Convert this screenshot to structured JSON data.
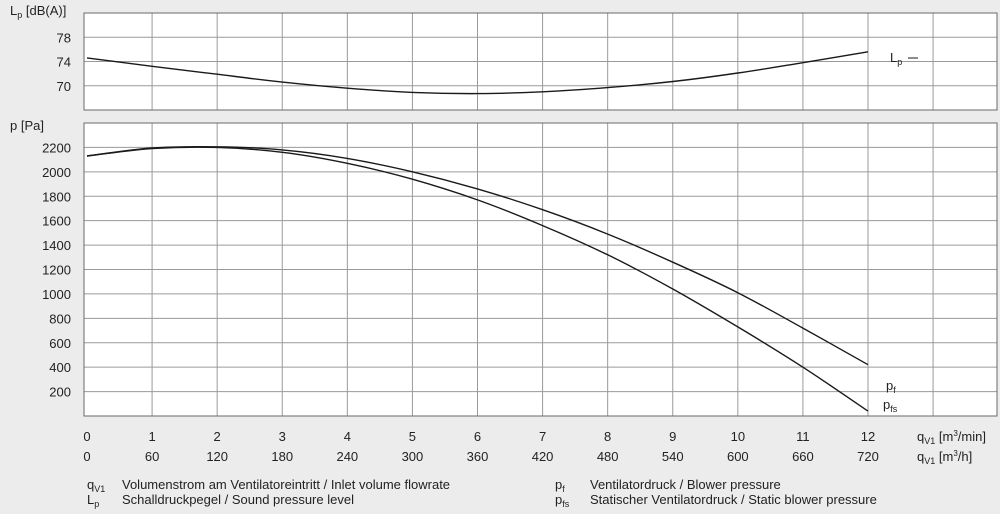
{
  "chart_data": {
    "type": "line",
    "x_primary": {
      "ticks": [
        0,
        1,
        2,
        3,
        4,
        5,
        6,
        7,
        8,
        9,
        10,
        11,
        12
      ],
      "label_symbol": "q",
      "label_sub": "V1",
      "label_unit_pre": "[m",
      "label_unit_sup": "3",
      "label_unit_post": "/min]"
    },
    "x_secondary": {
      "ticks": [
        0,
        60,
        120,
        180,
        240,
        300,
        360,
        420,
        480,
        540,
        600,
        660,
        720
      ],
      "label_symbol": "q",
      "label_sub": "V1",
      "label_unit_pre": "[m",
      "label_unit_sup": "3",
      "label_unit_post": "/h]"
    },
    "panels": [
      {
        "id": "sound",
        "ylabel_symbol": "L",
        "ylabel_sub": "p",
        "ylabel_unit": "[dB(A)]",
        "ylim": [
          66,
          82
        ],
        "yticks": [
          70,
          74,
          78
        ],
        "series": [
          {
            "name_symbol": "L",
            "name_sub": "p",
            "x": [
              0,
              1,
              2,
              3,
              4,
              5,
              6,
              7,
              8,
              9,
              10,
              11,
              12
            ],
            "y": [
              74.6,
              73.2,
              71.9,
              70.6,
              69.6,
              68.9,
              68.7,
              69.0,
              69.7,
              70.7,
              72.1,
              73.8,
              75.6
            ]
          }
        ]
      },
      {
        "id": "pressure",
        "ylabel_symbol": "p",
        "ylabel_sub": "",
        "ylabel_unit": "[Pa]",
        "ylim": [
          0,
          2400
        ],
        "yticks": [
          200,
          400,
          600,
          800,
          1000,
          1200,
          1400,
          1600,
          1800,
          2000,
          2200
        ],
        "series": [
          {
            "name_symbol": "p",
            "name_sub": "f",
            "x": [
              0,
              1,
              2,
              3,
              4,
              5,
              6,
              7,
              8,
              9,
              10,
              11,
              12
            ],
            "y": [
              2130,
              2195,
              2205,
              2180,
              2110,
              2000,
              1860,
              1690,
              1490,
              1260,
              1010,
              720,
              420
            ]
          },
          {
            "name_symbol": "p",
            "name_sub": "fs",
            "x": [
              0,
              1,
              2,
              3,
              4,
              5,
              6,
              7,
              8,
              9,
              10,
              11,
              12
            ],
            "y": [
              2130,
              2190,
              2200,
              2160,
              2070,
              1940,
              1770,
              1560,
              1320,
              1040,
              730,
              400,
              40
            ]
          }
        ]
      }
    ],
    "grid": true,
    "legend": [
      {
        "symbol": "q",
        "sub": "V1",
        "text": "Volumenstrom am Ventilatoreintritt / Inlet volume flowrate"
      },
      {
        "symbol": "L",
        "sub": "p",
        "text": "Schalldruckpegel / Sound pressure level"
      },
      {
        "symbol": "p",
        "sub": "f",
        "text": "Ventilatordruck / Blower pressure"
      },
      {
        "symbol": "p",
        "sub": "fs",
        "text": "Statischer Ventilatordruck / Static blower pressure"
      }
    ]
  }
}
